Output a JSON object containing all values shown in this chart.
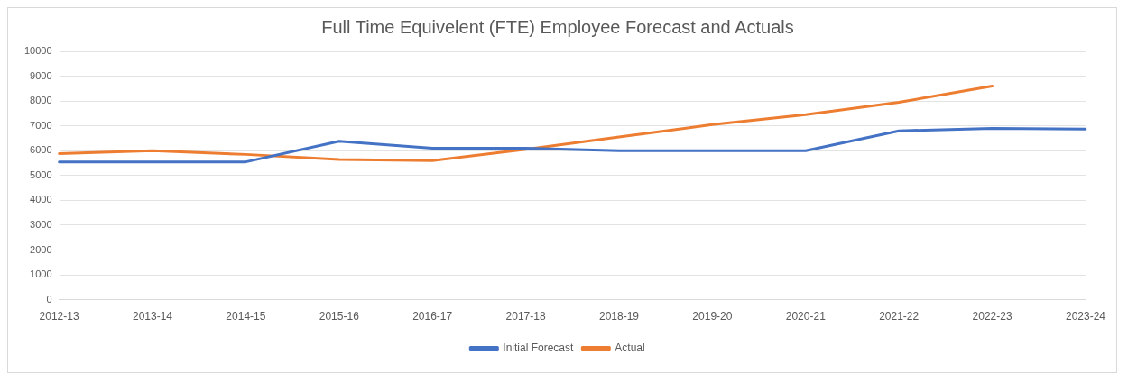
{
  "chart_data": {
    "type": "line",
    "title": "Full Time Equivelent (FTE) Employee Forecast and Actuals",
    "categories": [
      "2012-13",
      "2013-14",
      "2014-15",
      "2015-16",
      "2016-17",
      "2017-18",
      "2018-19",
      "2019-20",
      "2020-21",
      "2021-22",
      "2022-23",
      "2023-24"
    ],
    "series": [
      {
        "name": "Initial Forecast",
        "color": "#4472c4",
        "values": [
          5550,
          5550,
          5550,
          6380,
          6100,
          6100,
          6000,
          6000,
          6000,
          6800,
          6900,
          6870
        ]
      },
      {
        "name": "Actual",
        "color": "#ed7d31",
        "values": [
          5880,
          6000,
          5850,
          5650,
          5600,
          6050,
          6550,
          7050,
          7450,
          7950,
          8600,
          null
        ]
      }
    ],
    "ylim": [
      0,
      10000
    ],
    "yticks": [
      0,
      1000,
      2000,
      3000,
      4000,
      5000,
      6000,
      7000,
      8000,
      9000,
      10000
    ],
    "grid": "y",
    "legend": "bottom",
    "marker": "none",
    "line_style": "solid"
  }
}
